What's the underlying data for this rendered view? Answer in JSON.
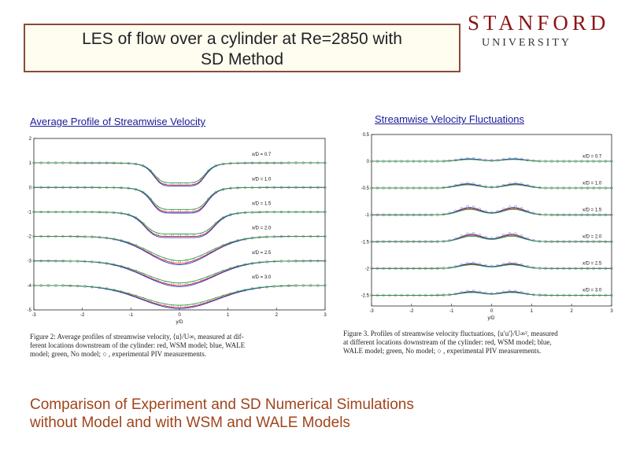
{
  "slide": {
    "title_line1": "LES of flow over a cylinder at Re=2850 with",
    "title_line2": "SD Method",
    "logo_main": "STANFORD",
    "logo_sub": "UNIVERSITY",
    "bottom_line1": "Comparison of Experiment and SD Numerical Simulations",
    "bottom_line2": "without Model and with WSM and WALE Models"
  },
  "colors": {
    "title_border": "#8b4a3a",
    "title_fill": "#fffdf0",
    "subtitle": "#1a1a99",
    "bottom_text": "#a0451c",
    "logo": "#8c1515"
  },
  "left_figure": {
    "subtitle": "Average Profile of Streamwise Velocity",
    "caption_line1": "Figure 2: Average profiles of streamwise velocity, ⟨u⟩/U∞, measured at dif-",
    "caption_line2": "ferent locations downstream of the cylinder: red, WSM model; blue, WALE",
    "caption_line3": "model; green, No model; ○ , experimental PIV measurements.",
    "xlabel": "y/D",
    "y_ticks": [
      "2",
      "1",
      "0",
      "-1",
      "-2",
      "-3",
      "-4",
      "-5"
    ],
    "x_ticks": [
      "-3",
      "-2",
      "-1",
      "0",
      "1",
      "2",
      "3"
    ],
    "locations": [
      "x/D = 0.7",
      "x/D = 1.0",
      "x/D = 1.5",
      "x/D = 2.0",
      "x/D = 2.5",
      "x/D = 3.0"
    ]
  },
  "right_figure": {
    "subtitle": "Streamwise Velocity Fluctuations",
    "caption_line1": "Figure 3. Profiles of streamwise velocity fluctuations, ⟨u′u′⟩/U∞², measured",
    "caption_line2": "at different locations downstream of the cylinder: red, WSM model; blue,",
    "caption_line3": "WALE model; green, No model; ○ , experimental PIV measurements.",
    "xlabel": "y/D",
    "y_ticks": [
      "0.5",
      "0",
      "-0.5",
      "-1",
      "-1.5",
      "-2",
      "-2.5"
    ],
    "x_ticks": [
      "-3",
      "-2",
      "-1",
      "0",
      "1",
      "2",
      "3"
    ],
    "locations": [
      "x/D = 0.7",
      "x/D = 1.0",
      "x/D = 1.5",
      "x/D = 2.0",
      "x/D = 2.5",
      "x/D = 3.0"
    ]
  },
  "chart_data": [
    {
      "type": "line",
      "title": "Average Profile of Streamwise Velocity",
      "xlabel": "y/D",
      "ylabel": "",
      "xlim": [
        -3,
        3
      ],
      "ylim": [
        -5,
        2
      ],
      "grid": false,
      "profiles": [
        {
          "name": "x/D = 0.7",
          "offset": 1,
          "width": 0.55,
          "deficit": 0.9,
          "shape": "flat"
        },
        {
          "name": "x/D = 1.0",
          "offset": 0,
          "width": 0.6,
          "deficit": 1.0,
          "shape": "flat"
        },
        {
          "name": "x/D = 1.5",
          "offset": -1,
          "width": 0.75,
          "deficit": 1.0,
          "shape": "flat"
        },
        {
          "name": "x/D = 2.0",
          "offset": -2,
          "width": 0.85,
          "deficit": 1.1,
          "shape": "round"
        },
        {
          "name": "x/D = 2.5",
          "offset": -3,
          "width": 0.95,
          "deficit": 1.0,
          "shape": "round"
        },
        {
          "name": "x/D = 3.0",
          "offset": -4,
          "width": 1.05,
          "deficit": 0.9,
          "shape": "round"
        }
      ],
      "series": [
        {
          "name": "red, WSM model",
          "color": "#e02020",
          "deficit_scale": 1.0
        },
        {
          "name": "blue, WALE model",
          "color": "#2030d0",
          "deficit_scale": 1.05
        },
        {
          "name": "green, No model",
          "color": "#20a040",
          "deficit_scale": 0.9
        },
        {
          "name": "experimental PIV measurements",
          "color": "#777777",
          "marker": "circle",
          "deficit_scale": 0.95
        }
      ]
    },
    {
      "type": "line",
      "title": "Streamwise Velocity Fluctuations",
      "xlabel": "y/D",
      "ylabel": "",
      "xlim": [
        -3,
        3
      ],
      "ylim": [
        -2.7,
        0.5
      ],
      "grid": false,
      "profiles": [
        {
          "name": "x/D = 0.7",
          "offset": 0,
          "peak": 0.04,
          "separation": 0.55
        },
        {
          "name": "x/D = 1.0",
          "offset": -0.5,
          "peak": 0.07,
          "separation": 0.6
        },
        {
          "name": "x/D = 1.5",
          "offset": -1,
          "peak": 0.12,
          "separation": 0.55
        },
        {
          "name": "x/D = 2.0",
          "offset": -1.5,
          "peak": 0.12,
          "separation": 0.5
        },
        {
          "name": "x/D = 2.5",
          "offset": -2,
          "peak": 0.08,
          "separation": 0.5
        },
        {
          "name": "x/D = 3.0",
          "offset": -2.5,
          "peak": 0.06,
          "separation": 0.5
        }
      ],
      "series": [
        {
          "name": "red, WSM model",
          "color": "#e02020",
          "peak_scale": 1.0
        },
        {
          "name": "blue, WALE model",
          "color": "#2030d0",
          "peak_scale": 1.15
        },
        {
          "name": "green, No model",
          "color": "#20a040",
          "peak_scale": 0.85
        },
        {
          "name": "experimental PIV measurements",
          "color": "#777777",
          "marker": "circle",
          "peak_scale": 1.3
        }
      ]
    }
  ]
}
